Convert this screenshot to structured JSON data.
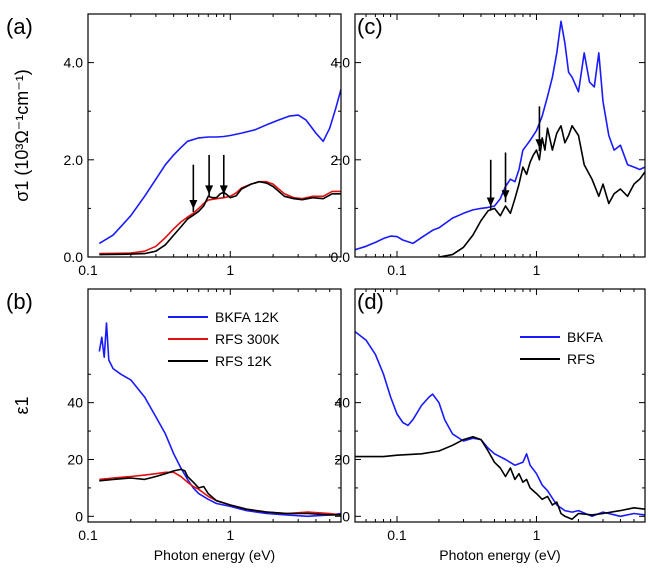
{
  "chart_data": [
    {
      "type": "line",
      "panel_label": "(a)",
      "ylabel": "σ1 (10³Ω⁻¹cm⁻¹)",
      "xlabel": "",
      "xscale": "log",
      "xlim": [
        0.1,
        6
      ],
      "ylim": [
        0,
        5
      ],
      "x_ticks": [
        0.1,
        1
      ],
      "x_tick_labels": [
        "0.1",
        "1"
      ],
      "y_ticks": [
        0,
        2,
        4
      ],
      "y_tick_labels": [
        "0.0",
        "2.0",
        "4.0"
      ],
      "series": [
        {
          "color": "#1a1aff",
          "x": [
            0.12,
            0.15,
            0.2,
            0.25,
            0.3,
            0.35,
            0.4,
            0.45,
            0.5,
            0.6,
            0.7,
            0.8,
            0.9,
            1.0,
            1.2,
            1.5,
            1.8,
            2.2,
            2.6,
            3.0,
            3.4,
            4.0,
            4.5,
            5.0,
            5.5,
            6.0
          ],
          "y": [
            0.28,
            0.45,
            0.85,
            1.25,
            1.6,
            1.9,
            2.1,
            2.25,
            2.38,
            2.45,
            2.47,
            2.47,
            2.48,
            2.5,
            2.55,
            2.62,
            2.72,
            2.82,
            2.9,
            2.92,
            2.82,
            2.55,
            2.38,
            2.65,
            3.05,
            3.45
          ]
        },
        {
          "color": "#e01010",
          "x": [
            0.12,
            0.2,
            0.25,
            0.3,
            0.35,
            0.4,
            0.45,
            0.5,
            0.55,
            0.6,
            0.65,
            0.7,
            0.8,
            0.9,
            1.0,
            1.1,
            1.2,
            1.4,
            1.6,
            1.8,
            2.0,
            2.4,
            2.8,
            3.2,
            3.8,
            4.5,
            5.2,
            6.0
          ],
          "y": [
            0.07,
            0.08,
            0.12,
            0.22,
            0.4,
            0.58,
            0.72,
            0.82,
            0.9,
            1.0,
            1.1,
            1.17,
            1.2,
            1.22,
            1.25,
            1.32,
            1.42,
            1.5,
            1.55,
            1.55,
            1.5,
            1.3,
            1.22,
            1.2,
            1.25,
            1.25,
            1.35,
            1.35
          ]
        },
        {
          "color": "#000000",
          "x": [
            0.12,
            0.2,
            0.25,
            0.3,
            0.35,
            0.4,
            0.45,
            0.5,
            0.55,
            0.6,
            0.65,
            0.7,
            0.75,
            0.8,
            0.85,
            0.9,
            0.95,
            1.0,
            1.1,
            1.2,
            1.4,
            1.6,
            1.8,
            2.0,
            2.4,
            2.8,
            3.2,
            3.8,
            4.5,
            5.2,
            6.0
          ],
          "y": [
            0.05,
            0.06,
            0.07,
            0.12,
            0.25,
            0.45,
            0.62,
            0.78,
            0.86,
            0.94,
            1.05,
            1.25,
            1.22,
            1.22,
            1.3,
            1.33,
            1.28,
            1.22,
            1.26,
            1.4,
            1.5,
            1.55,
            1.52,
            1.45,
            1.25,
            1.2,
            1.18,
            1.22,
            1.2,
            1.3,
            1.3
          ]
        }
      ],
      "annotations": [
        {
          "type": "arrow",
          "x": 0.55,
          "y_tip": 1.05,
          "y_tail": 1.9
        },
        {
          "type": "arrow",
          "x": 0.71,
          "y_tip": 1.35,
          "y_tail": 2.1
        },
        {
          "type": "arrow",
          "x": 0.9,
          "y_tip": 1.35,
          "y_tail": 2.1
        }
      ]
    },
    {
      "type": "line",
      "panel_label": "(b)",
      "ylabel": "ε1",
      "xlabel": "Photon energy (eV)",
      "xscale": "log",
      "xlim": [
        0.1,
        6
      ],
      "ylim": [
        -2,
        80
      ],
      "x_ticks": [
        0.1,
        1
      ],
      "x_tick_labels": [
        "0.1",
        "1"
      ],
      "y_ticks": [
        0,
        20,
        40
      ],
      "y_tick_labels": [
        "0",
        "20",
        "40"
      ],
      "legend": {
        "position": "top-right",
        "entries": [
          "BKFA 12K",
          "RFS 300K",
          "RFS 12K"
        ]
      },
      "series": [
        {
          "name": "BKFA 12K",
          "color": "#1a1aff",
          "x": [
            0.12,
            0.125,
            0.13,
            0.135,
            0.14,
            0.15,
            0.17,
            0.2,
            0.25,
            0.3,
            0.35,
            0.4,
            0.45,
            0.5,
            0.55,
            0.6,
            0.7,
            0.8,
            1.0,
            1.3,
            1.8,
            2.5,
            3.5,
            5.0,
            6.0
          ],
          "y": [
            58,
            63,
            56,
            68,
            55,
            52,
            50,
            48,
            42,
            35,
            29,
            22,
            17,
            13,
            10,
            8,
            6,
            4.5,
            3.5,
            2,
            1,
            0.5,
            0,
            0.5,
            1
          ]
        },
        {
          "name": "RFS 300K",
          "color": "#e01010",
          "x": [
            0.12,
            0.15,
            0.2,
            0.25,
            0.3,
            0.35,
            0.4,
            0.45,
            0.5,
            0.55,
            0.6,
            0.7,
            0.8,
            1.0,
            1.3,
            1.8,
            2.5,
            3.5,
            5.0,
            6.0
          ],
          "y": [
            13,
            13.5,
            14,
            14.5,
            15,
            15.5,
            15.5,
            14,
            12,
            10.5,
            9.5,
            7,
            5.5,
            4,
            2.5,
            1.5,
            1,
            1.5,
            1,
            0.5
          ]
        },
        {
          "name": "RFS 12K",
          "color": "#000000",
          "x": [
            0.12,
            0.15,
            0.2,
            0.25,
            0.3,
            0.35,
            0.4,
            0.45,
            0.48,
            0.5,
            0.55,
            0.6,
            0.65,
            0.7,
            0.8,
            1.0,
            1.3,
            1.8,
            2.5,
            3.5,
            5.0,
            6.0
          ],
          "y": [
            12.5,
            13,
            13.5,
            13,
            14,
            15,
            16,
            16.5,
            16,
            14,
            12,
            10,
            10.5,
            8,
            5.5,
            4,
            2.5,
            1.5,
            1,
            1,
            0.5,
            0.5
          ]
        }
      ]
    },
    {
      "type": "line",
      "panel_label": "(c)",
      "ylabel": "",
      "xlabel": "",
      "xscale": "log",
      "xlim": [
        0.05,
        6
      ],
      "ylim": [
        0,
        5
      ],
      "x_ticks": [
        0.1,
        1
      ],
      "x_tick_labels": [
        "0.1",
        "1"
      ],
      "y_ticks": [
        0,
        2,
        4
      ],
      "y_tick_labels": [
        "0.0",
        "2.0",
        "4.0"
      ],
      "series": [
        {
          "color": "#1a1aff",
          "x": [
            0.05,
            0.06,
            0.07,
            0.08,
            0.09,
            0.1,
            0.11,
            0.13,
            0.15,
            0.18,
            0.2,
            0.25,
            0.3,
            0.35,
            0.4,
            0.45,
            0.5,
            0.55,
            0.6,
            0.65,
            0.7,
            0.75,
            0.8,
            0.85,
            0.9,
            1.0,
            1.1,
            1.2,
            1.3,
            1.4,
            1.5,
            1.6,
            1.7,
            1.8,
            2.0,
            2.2,
            2.4,
            2.6,
            2.8,
            3.0,
            3.3,
            3.6,
            4.0,
            4.5,
            5.0,
            5.5,
            6.0
          ],
          "y": [
            0.15,
            0.22,
            0.3,
            0.38,
            0.43,
            0.42,
            0.35,
            0.28,
            0.4,
            0.55,
            0.6,
            0.8,
            0.9,
            0.97,
            1.0,
            1.02,
            1.05,
            1.2,
            1.45,
            1.6,
            1.55,
            1.8,
            2.2,
            2.3,
            2.4,
            2.6,
            2.9,
            3.3,
            3.7,
            4.2,
            4.85,
            4.4,
            3.8,
            3.7,
            3.4,
            4.2,
            3.6,
            3.5,
            4.2,
            3.2,
            2.5,
            2.2,
            2.3,
            1.9,
            1.85,
            1.8,
            1.85
          ]
        },
        {
          "color": "#000000",
          "x": [
            0.2,
            0.25,
            0.3,
            0.35,
            0.4,
            0.45,
            0.5,
            0.55,
            0.6,
            0.65,
            0.7,
            0.75,
            0.8,
            0.85,
            0.9,
            0.95,
            1.0,
            1.05,
            1.1,
            1.15,
            1.2,
            1.3,
            1.4,
            1.5,
            1.6,
            1.7,
            1.8,
            2.0,
            2.2,
            2.5,
            2.8,
            3.0,
            3.3,
            3.6,
            4.0,
            4.5,
            5.0,
            5.5,
            6.0
          ],
          "y": [
            0,
            0.05,
            0.2,
            0.45,
            0.75,
            0.95,
            1.0,
            0.85,
            1.05,
            0.9,
            1.2,
            1.5,
            1.85,
            1.7,
            1.95,
            2.1,
            2.2,
            2.0,
            2.45,
            2.2,
            2.65,
            2.2,
            2.55,
            2.7,
            2.35,
            2.5,
            2.7,
            2.5,
            1.9,
            1.6,
            1.25,
            1.5,
            1.1,
            1.3,
            1.4,
            1.25,
            1.5,
            1.6,
            1.75
          ]
        }
      ],
      "annotations": [
        {
          "type": "arrow",
          "x": 0.47,
          "y_tip": 1.1,
          "y_tail": 2.0
        },
        {
          "type": "arrow",
          "x": 0.6,
          "y_tip": 1.25,
          "y_tail": 2.15
        },
        {
          "type": "arrow",
          "x": 1.05,
          "y_tip": 2.3,
          "y_tail": 3.1
        }
      ]
    },
    {
      "type": "line",
      "panel_label": "(d)",
      "ylabel": "",
      "xlabel": "Photon energy (eV)",
      "xscale": "log",
      "xlim": [
        0.05,
        6
      ],
      "ylim": [
        -2,
        80
      ],
      "x_ticks": [
        0.1,
        1
      ],
      "x_tick_labels": [
        "0.1",
        "1"
      ],
      "y_ticks": [
        0,
        20,
        40
      ],
      "y_tick_labels": [
        "0",
        "20",
        "40"
      ],
      "legend": {
        "position": "top-right",
        "entries": [
          "BKFA",
          "RFS"
        ]
      },
      "series": [
        {
          "name": "BKFA",
          "color": "#1a1aff",
          "x": [
            0.05,
            0.06,
            0.07,
            0.08,
            0.09,
            0.1,
            0.11,
            0.12,
            0.13,
            0.15,
            0.17,
            0.18,
            0.2,
            0.22,
            0.25,
            0.3,
            0.35,
            0.4,
            0.45,
            0.5,
            0.6,
            0.7,
            0.8,
            0.85,
            0.9,
            1.0,
            1.1,
            1.2,
            1.4,
            1.6,
            1.8,
            2.0,
            2.5,
            3.0,
            4.0,
            5.0,
            6.0
          ],
          "y": [
            65,
            62,
            57,
            50,
            42,
            36,
            33,
            32,
            34,
            39,
            42,
            43,
            40,
            34,
            29,
            26.5,
            27.5,
            27,
            24,
            22,
            20,
            18,
            19,
            22,
            18,
            15,
            11,
            9,
            4,
            2,
            1.5,
            2,
            0,
            1.5,
            0,
            1,
            0.5
          ]
        },
        {
          "name": "RFS",
          "color": "#000000",
          "x": [
            0.05,
            0.08,
            0.1,
            0.15,
            0.2,
            0.25,
            0.3,
            0.35,
            0.4,
            0.45,
            0.5,
            0.55,
            0.6,
            0.65,
            0.7,
            0.75,
            0.8,
            0.85,
            0.9,
            1.0,
            1.1,
            1.2,
            1.3,
            1.4,
            1.5,
            1.6,
            1.8,
            2.0,
            2.5,
            3.0,
            4.0,
            5.0,
            6.0
          ],
          "y": [
            21,
            21,
            21.5,
            22,
            23,
            25,
            27,
            28,
            27,
            23,
            19,
            17,
            14,
            17,
            13,
            15,
            12,
            13,
            10,
            8,
            6,
            7,
            4,
            5,
            1,
            0,
            -1,
            1,
            0.5,
            1,
            2,
            3,
            2.5
          ]
        }
      ]
    }
  ]
}
